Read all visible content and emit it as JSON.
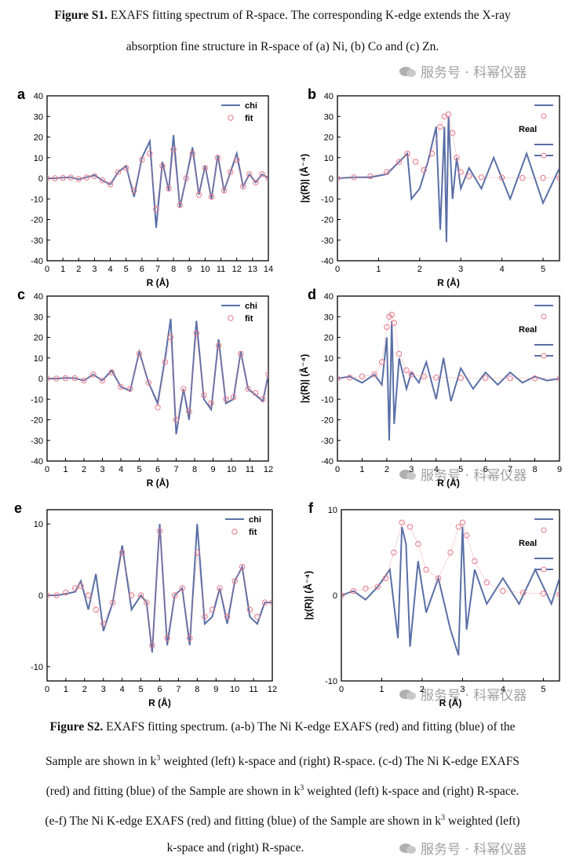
{
  "caption_s1": {
    "label": "Figure S1.",
    "line1": "EXAFS fitting spectrum of R-space. The corresponding K-edge extends the X-ray",
    "line2": "absorption fine structure in R-space of (a) Ni, (b) Co and (c) Zn."
  },
  "caption_s2": {
    "label": "Figure S2.",
    "line1": "EXAFS fitting spectrum. (a-b) The Ni K-edge EXAFS (red) and fitting (blue) of the",
    "line2a": "Sample are shown in k",
    "line2sup": "3",
    "line2b": " weighted (left) k-space and (right) R-space. (c-d) The Ni K-edge EXAFS",
    "line3a": "(red) and fitting (blue) of the Sample are shown in k",
    "line3sup": "3",
    "line3b": " weighted (left) k-space and (right) R-space.",
    "line4a": "(e-f) The Ni K-edge EXAFS (red) and fitting (blue) of the Sample are shown in k",
    "line4sup": "3",
    "line4b": " weighted (left)",
    "line5": "k-space and (right) R-space."
  },
  "watermark": {
    "text": "服务号 · 科幂仪器"
  },
  "colors": {
    "chi": "#5a6fa6",
    "fit": "#e67a8a",
    "axis": "#000000"
  },
  "chart_data": [
    {
      "id": "a",
      "type": "line",
      "panel_label": "a",
      "xlabel": "R (Å)",
      "ylabel": "",
      "xlim": [
        0,
        14
      ],
      "ylim": [
        -40,
        40
      ],
      "xticks": [
        0,
        1,
        2,
        3,
        4,
        5,
        6,
        7,
        8,
        9,
        10,
        11,
        12,
        13,
        14
      ],
      "yticks": [
        -40,
        -30,
        -20,
        -10,
        0,
        10,
        20,
        30,
        40
      ],
      "legend": [
        "chi",
        "fit"
      ],
      "legend_position": "top-right",
      "series": [
        {
          "name": "chi",
          "x": [
            0,
            0.5,
            1,
            1.5,
            2,
            2.5,
            3,
            3.5,
            4,
            4.5,
            5,
            5.5,
            6,
            6.5,
            6.9,
            7.3,
            7.7,
            8,
            8.4,
            8.8,
            9.2,
            9.6,
            10,
            10.4,
            10.8,
            11.2,
            11.6,
            12,
            12.4,
            12.8,
            13.2,
            13.6,
            14
          ],
          "y": [
            0,
            0,
            0.3,
            0.5,
            -0.5,
            0.5,
            1.5,
            -1,
            -3,
            3,
            6,
            -9,
            10,
            18,
            -24,
            8,
            -6,
            21,
            -14,
            0,
            15,
            -8,
            6,
            -10,
            11,
            -6,
            3,
            12,
            -4,
            2,
            -2,
            2,
            0
          ]
        },
        {
          "name": "fit",
          "x": [
            0,
            0.5,
            1,
            1.5,
            2,
            2.5,
            3,
            3.5,
            4,
            4.5,
            5,
            5.5,
            6,
            6.5,
            6.9,
            7.3,
            7.7,
            8,
            8.4,
            8.8,
            9.2,
            9.6,
            10,
            10.4,
            10.8,
            11.2,
            11.6,
            12,
            12.4,
            12.8,
            13.2,
            13.6,
            14
          ],
          "y": [
            0,
            0,
            0.2,
            0.4,
            -0.4,
            0.4,
            1,
            -1,
            -3,
            3,
            5,
            -6,
            9,
            12,
            -15,
            6,
            -5,
            14,
            -13,
            0,
            12,
            -8,
            5,
            -9,
            10,
            -6,
            3,
            9,
            -4,
            2,
            -2,
            2,
            0
          ]
        }
      ]
    },
    {
      "id": "b",
      "type": "line",
      "panel_label": "b",
      "xlabel": "R (Å)",
      "ylabel": "|χ(R)| (Å⁻⁴)",
      "xlim": [
        0,
        5.4
      ],
      "ylim": [
        -40,
        40
      ],
      "xticks": [
        0,
        1,
        2,
        3,
        4,
        5
      ],
      "yticks": [
        -40,
        -30,
        -20,
        -10,
        0,
        10,
        20,
        30,
        40
      ],
      "legend": [
        "",
        "",
        "Real",
        "",
        ""
      ],
      "legend_position": "top-right",
      "series": [
        {
          "name": "",
          "x": [
            0,
            0.4,
            0.8,
            1.2,
            1.5,
            1.7,
            1.8,
            2,
            2.2,
            2.4,
            2.5,
            2.6,
            2.65,
            2.7,
            2.8,
            2.9,
            3,
            3.2,
            3.5,
            3.8,
            4.2,
            4.6,
            5,
            5.4
          ],
          "y": [
            0,
            0.5,
            0.5,
            2,
            8,
            12,
            -10,
            -5,
            8,
            25,
            -25,
            25,
            -31,
            30,
            -10,
            10,
            -5,
            5,
            -5,
            10,
            -10,
            12,
            -12,
            5
          ]
        },
        {
          "name": "",
          "x": [
            0,
            0.4,
            0.8,
            1.2,
            1.5,
            1.7,
            1.9,
            2.1,
            2.3,
            2.5,
            2.6,
            2.7,
            2.8,
            2.9,
            3,
            3.2,
            3.5,
            4,
            4.5,
            5,
            5.4
          ],
          "y": [
            0,
            0.5,
            1,
            3,
            8,
            12,
            8,
            4,
            12,
            25,
            30,
            31,
            22,
            10,
            3,
            1,
            0.5,
            0.3,
            0.2,
            0.2,
            0.1
          ]
        }
      ]
    },
    {
      "id": "c",
      "type": "line",
      "panel_label": "c",
      "xlabel": "R (Å)",
      "ylabel": "",
      "xlim": [
        0,
        12
      ],
      "ylim": [
        -40,
        40
      ],
      "xticks": [
        0,
        1,
        2,
        3,
        4,
        5,
        6,
        7,
        8,
        9,
        10,
        11,
        12
      ],
      "yticks": [
        -40,
        -30,
        -20,
        -10,
        0,
        10,
        20,
        30,
        40
      ],
      "legend": [
        "chi",
        "fit"
      ],
      "legend_position": "top-right",
      "series": [
        {
          "name": "chi",
          "x": [
            0,
            0.5,
            1,
            1.5,
            2,
            2.5,
            3,
            3.5,
            4,
            4.5,
            5,
            5.5,
            6,
            6.4,
            6.7,
            7,
            7.4,
            7.7,
            8.1,
            8.5,
            8.9,
            9.3,
            9.7,
            10.1,
            10.5,
            10.9,
            11.3,
            11.7,
            12
          ],
          "y": [
            0,
            0,
            0.3,
            0.2,
            -1,
            2,
            -1,
            4,
            -4,
            -6,
            13,
            -2,
            -12,
            10,
            29,
            -27,
            -5,
            -20,
            28,
            -10,
            -15,
            19,
            -12,
            -10,
            13,
            -5,
            -8,
            -11,
            2
          ]
        },
        {
          "name": "fit",
          "x": [
            0,
            0.5,
            1,
            1.5,
            2,
            2.5,
            3,
            3.5,
            4,
            4.5,
            5,
            5.5,
            6,
            6.4,
            6.7,
            7,
            7.4,
            7.7,
            8.1,
            8.5,
            8.9,
            9.3,
            9.7,
            10.1,
            10.5,
            10.9,
            11.3,
            11.7,
            12
          ],
          "y": [
            0,
            0,
            0.2,
            0.2,
            -1,
            2,
            -1,
            3,
            -4,
            -5,
            12,
            -2,
            -14,
            8,
            20,
            -20,
            -5,
            -16,
            22,
            -8,
            -12,
            16,
            -10,
            -9,
            12,
            -5,
            -7,
            -10,
            2
          ]
        }
      ]
    },
    {
      "id": "d",
      "type": "line",
      "panel_label": "d",
      "xlabel": "R (Å)",
      "ylabel": "|χ(R)| (Å⁻⁴)",
      "xlim": [
        0,
        9
      ],
      "ylim": [
        -40,
        40
      ],
      "xticks": [
        0,
        1,
        2,
        3,
        4,
        5,
        6,
        7,
        8,
        9
      ],
      "yticks": [
        -40,
        -30,
        -20,
        -10,
        0,
        10,
        20,
        30,
        40
      ],
      "legend": [
        "",
        "",
        "Real",
        "",
        ""
      ],
      "legend_position": "top-right",
      "series": [
        {
          "name": "",
          "x": [
            0,
            0.5,
            1,
            1.5,
            1.8,
            2,
            2.1,
            2.2,
            2.3,
            2.5,
            2.8,
            3,
            3.3,
            3.6,
            4,
            4.3,
            4.6,
            5,
            5.5,
            6,
            6.5,
            7,
            7.5,
            8,
            8.5,
            9
          ],
          "y": [
            0,
            1,
            -2,
            2,
            -3,
            20,
            -30,
            28,
            -22,
            10,
            -5,
            3,
            -2,
            8,
            -10,
            10,
            -11,
            5,
            -5,
            3,
            -3,
            3,
            -2,
            1,
            -1,
            0
          ]
        },
        {
          "name": "",
          "x": [
            0,
            0.5,
            1,
            1.5,
            1.8,
            2,
            2.1,
            2.2,
            2.3,
            2.5,
            2.8,
            3,
            3.5,
            4,
            5,
            6,
            7,
            8,
            9
          ],
          "y": [
            0,
            0.5,
            1,
            2,
            8,
            25,
            30,
            31,
            27,
            12,
            4,
            2,
            1,
            0.5,
            0.3,
            0.2,
            0.1,
            0.1,
            0
          ]
        }
      ]
    },
    {
      "id": "e",
      "type": "line",
      "panel_label": "e",
      "xlabel": "R (Å)",
      "ylabel": "",
      "xlim": [
        0,
        12
      ],
      "ylim": [
        -12,
        12
      ],
      "xticks": [
        0,
        1,
        2,
        3,
        4,
        5,
        6,
        7,
        8,
        9,
        10,
        11,
        12
      ],
      "yticks": [
        -10,
        0,
        10
      ],
      "legend": [
        "chi",
        "fit"
      ],
      "legend_position": "top-right",
      "series": [
        {
          "name": "chi",
          "x": [
            0,
            0.5,
            1,
            1.5,
            1.8,
            2.2,
            2.6,
            3,
            3.5,
            4,
            4.5,
            5,
            5.3,
            5.6,
            6,
            6.4,
            6.8,
            7.2,
            7.6,
            8,
            8.4,
            8.8,
            9.2,
            9.6,
            10,
            10.4,
            10.8,
            11.2,
            11.6,
            12
          ],
          "y": [
            0,
            0,
            0.2,
            0.5,
            2,
            -2,
            3,
            -5,
            -1,
            7,
            -2,
            0,
            -1,
            -8,
            10,
            -7,
            0,
            1,
            -7,
            10,
            -4,
            -3,
            1,
            -4,
            2,
            4,
            -3,
            -4,
            -1,
            -1
          ]
        },
        {
          "name": "fit",
          "x": [
            0,
            0.5,
            1,
            1.5,
            1.8,
            2.2,
            2.6,
            3,
            3.5,
            4,
            4.5,
            5,
            5.3,
            5.6,
            6,
            6.4,
            6.8,
            7.2,
            7.6,
            8,
            8.4,
            8.8,
            9.2,
            9.6,
            10,
            10.4,
            10.8,
            11.2,
            11.6,
            12
          ],
          "y": [
            0,
            0,
            0.4,
            1,
            1.3,
            0,
            -2,
            -4,
            -1,
            6,
            0,
            0,
            -1,
            -7,
            9,
            -6,
            0,
            1,
            -6,
            6,
            -3,
            -2,
            1,
            -3,
            2,
            4,
            -2,
            -3,
            -1,
            -1
          ]
        }
      ]
    },
    {
      "id": "f",
      "type": "line",
      "panel_label": "f",
      "xlabel": "R (Å)",
      "ylabel": "|χ(R)| (Å⁻⁴)",
      "xlim": [
        0,
        5.4
      ],
      "ylim": [
        -10,
        10
      ],
      "xticks": [
        0,
        1,
        2,
        3,
        4,
        5
      ],
      "yticks": [
        -10,
        0,
        10
      ],
      "legend": [
        "",
        "",
        "Real",
        "",
        ""
      ],
      "legend_position": "top-right",
      "series": [
        {
          "name": "",
          "x": [
            0,
            0.3,
            0.6,
            0.9,
            1.2,
            1.4,
            1.5,
            1.6,
            1.7,
            1.9,
            2.1,
            2.4,
            2.7,
            2.9,
            3,
            3.1,
            3.3,
            3.6,
            4,
            4.4,
            4.8,
            5.2,
            5.4
          ],
          "y": [
            0,
            0.5,
            -0.5,
            1,
            3,
            -5,
            8,
            6,
            -6,
            4,
            -2,
            2,
            -4,
            -7,
            8,
            -4,
            3,
            -1,
            2,
            -1,
            3,
            -1,
            2
          ]
        },
        {
          "name": "",
          "x": [
            0,
            0.3,
            0.6,
            0.9,
            1.1,
            1.3,
            1.5,
            1.7,
            1.9,
            2.1,
            2.4,
            2.7,
            2.9,
            3,
            3.1,
            3.3,
            3.6,
            4,
            4.5,
            5,
            5.4
          ],
          "y": [
            0,
            0.5,
            0.8,
            1,
            2,
            5,
            8.5,
            8,
            6,
            3,
            2,
            5,
            8,
            8.5,
            7,
            4,
            1.5,
            0.5,
            0.3,
            0.2,
            0.1
          ]
        }
      ]
    }
  ]
}
